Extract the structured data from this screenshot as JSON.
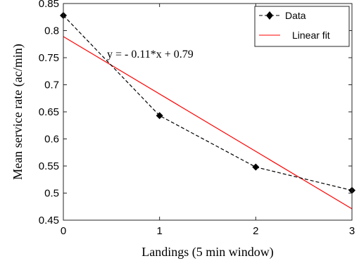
{
  "chart_data": {
    "type": "line",
    "x": [
      0,
      1,
      2,
      3
    ],
    "xlim": [
      0,
      3
    ],
    "ylim": [
      0.45,
      0.85
    ],
    "xticks": [
      "0",
      "1",
      "2",
      "3"
    ],
    "yticks": [
      "0.45",
      "0.5",
      "0.55",
      "0.6",
      "0.65",
      "0.7",
      "0.75",
      "0.8",
      "0.85"
    ],
    "xlabel": "Landings (5 min window)",
    "ylabel": "Mean service rate (ac/min)",
    "grid": false,
    "legend": {
      "placement": "top-right",
      "entries": [
        "Data",
        "Linear fit"
      ]
    },
    "series": [
      {
        "name": "Data",
        "y": [
          0.828,
          0.643,
          0.548,
          0.505
        ],
        "color": "#000000",
        "line_style": "dashed",
        "marker": "diamond"
      },
      {
        "name": "Linear fit",
        "slope": -0.106,
        "intercept": 0.789,
        "color": "#ff0000",
        "line_style": "solid"
      }
    ],
    "annotation": "y = - 0.11*x + 0.79"
  }
}
